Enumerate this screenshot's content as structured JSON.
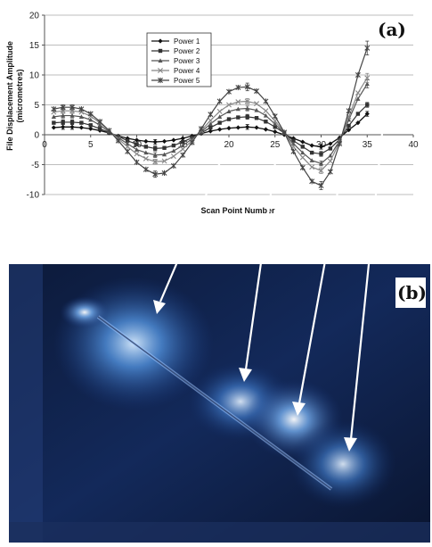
{
  "figure": {
    "panel_a_label": "(a)",
    "panel_b_label": "(b)"
  },
  "chart_data": {
    "type": "line",
    "title": "",
    "xlabel": "Scan Point Number",
    "ylabel_line1": "File Displacement Amplitude",
    "ylabel_line2": "(micrometres)",
    "xlim": [
      0,
      40
    ],
    "ylim": [
      -10,
      20
    ],
    "xticks": [
      0,
      5,
      10,
      15,
      20,
      25,
      30,
      35,
      40
    ],
    "yticks": [
      -10,
      -5,
      0,
      5,
      10,
      15,
      20
    ],
    "grid": "horizontal",
    "legend_position": "top-left",
    "x": [
      1,
      2,
      3,
      4,
      5,
      6,
      7,
      8,
      9,
      10,
      11,
      12,
      13,
      14,
      15,
      16,
      17,
      18,
      19,
      20,
      21,
      22,
      23,
      24,
      25,
      26,
      27,
      28,
      29,
      30,
      31,
      32,
      33,
      34,
      35
    ],
    "series": [
      {
        "name": "Power 1",
        "marker": "diamond",
        "values": [
          1.2,
          1.3,
          1.3,
          1.2,
          1.0,
          0.7,
          0.3,
          -0.2,
          -0.6,
          -0.9,
          -1.1,
          -1.2,
          -1.1,
          -0.9,
          -0.6,
          -0.2,
          0.2,
          0.6,
          0.9,
          1.1,
          1.2,
          1.3,
          1.2,
          0.9,
          0.5,
          0.0,
          -0.6,
          -1.2,
          -1.8,
          -2.0,
          -1.5,
          -0.5,
          0.8,
          2.0,
          3.5
        ]
      },
      {
        "name": "Power 2",
        "marker": "square",
        "values": [
          2.0,
          2.1,
          2.1,
          2.0,
          1.6,
          1.0,
          0.4,
          -0.3,
          -1.0,
          -1.6,
          -2.0,
          -2.3,
          -2.2,
          -1.8,
          -1.2,
          -0.5,
          0.3,
          1.2,
          2.0,
          2.6,
          2.9,
          3.0,
          2.8,
          2.2,
          1.3,
          0.3,
          -1.0,
          -2.0,
          -3.0,
          -3.2,
          -2.3,
          -0.8,
          1.5,
          3.5,
          5.0
        ]
      },
      {
        "name": "Power 3",
        "marker": "triangle",
        "values": [
          3.0,
          3.2,
          3.2,
          3.0,
          2.5,
          1.6,
          0.5,
          -0.5,
          -1.5,
          -2.5,
          -3.0,
          -3.4,
          -3.3,
          -2.7,
          -1.8,
          -0.7,
          0.5,
          1.8,
          3.0,
          3.9,
          4.3,
          4.4,
          4.1,
          3.2,
          1.8,
          0.3,
          -1.5,
          -3.0,
          -4.3,
          -4.8,
          -3.5,
          -1.0,
          2.5,
          6.0,
          8.5
        ]
      },
      {
        "name": "Power 4",
        "marker": "x",
        "values": [
          3.8,
          4.0,
          4.0,
          3.8,
          3.1,
          2.0,
          0.7,
          -0.7,
          -2.0,
          -3.2,
          -4.0,
          -4.5,
          -4.4,
          -3.6,
          -2.4,
          -1.0,
          0.7,
          2.4,
          3.9,
          5.0,
          5.5,
          5.6,
          5.2,
          4.0,
          2.3,
          0.4,
          -2.0,
          -3.8,
          -5.4,
          -6.0,
          -4.4,
          -1.2,
          3.0,
          7.0,
          9.5
        ]
      },
      {
        "name": "Power 5",
        "marker": "star",
        "values": [
          4.3,
          4.6,
          4.6,
          4.3,
          3.5,
          2.2,
          0.7,
          -1.0,
          -2.8,
          -4.6,
          -5.8,
          -6.6,
          -6.4,
          -5.2,
          -3.4,
          -1.3,
          1.0,
          3.4,
          5.6,
          7.2,
          7.9,
          8.0,
          7.3,
          5.6,
          3.1,
          0.4,
          -2.8,
          -5.5,
          -7.8,
          -8.5,
          -6.2,
          -1.5,
          4.0,
          10.0,
          14.5
        ]
      }
    ]
  }
}
